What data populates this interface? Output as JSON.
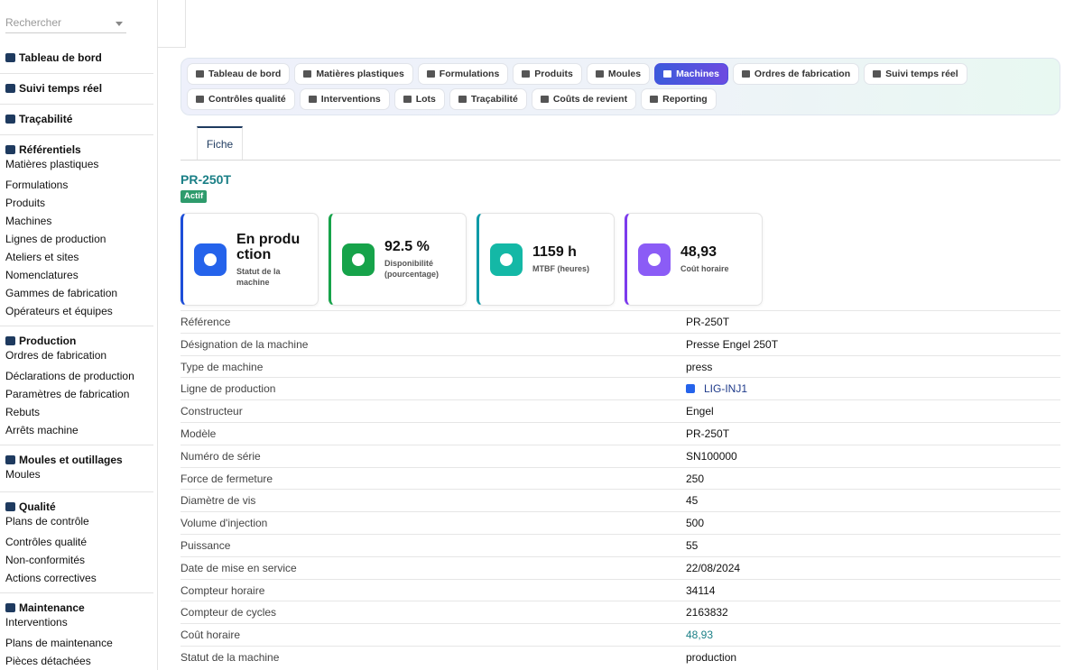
{
  "search": {
    "placeholder": "Rechercher"
  },
  "sidebar": [
    {
      "title": "Tableau de bord",
      "items": []
    },
    {
      "title": "Suivi temps réel",
      "items": []
    },
    {
      "title": "Traçabilité",
      "items": []
    },
    {
      "title": "Référentiels",
      "items": [
        "Matières plastiques",
        "Formulations",
        "Produits",
        "Machines",
        "Lignes de production",
        "Ateliers et sites",
        "Nomenclatures",
        "Gammes de fabrication",
        "Opérateurs et équipes"
      ]
    },
    {
      "title": "Production",
      "items": [
        "Ordres de fabrication",
        "Déclarations de production",
        "Paramètres de fabrication",
        "Rebuts",
        "Arrêts machine"
      ]
    },
    {
      "title": "Moules et outillages",
      "items": [
        "Moules"
      ]
    },
    {
      "title": "Qualité",
      "items": [
        "Plans de contrôle",
        "Contrôles qualité",
        "Non-conformités",
        "Actions correctives"
      ]
    },
    {
      "title": "Maintenance",
      "items": [
        "Interventions",
        "Plans de maintenance",
        "Pièces détachées"
      ]
    }
  ],
  "tabs": [
    {
      "label": "Tableau de bord"
    },
    {
      "label": "Matières plastiques"
    },
    {
      "label": "Formulations"
    },
    {
      "label": "Produits"
    },
    {
      "label": "Moules"
    },
    {
      "label": "Machines",
      "active": true
    },
    {
      "label": "Ordres de fabrication"
    },
    {
      "label": "Suivi temps réel"
    },
    {
      "label": "Contrôles qualité"
    },
    {
      "label": "Interventions"
    },
    {
      "label": "Lots"
    },
    {
      "label": "Traçabilité"
    },
    {
      "label": "Coûts de revient"
    },
    {
      "label": "Reporting"
    }
  ],
  "subtab": "Fiche",
  "header": {
    "title": "PR-250T",
    "badge": "Actif"
  },
  "cards": [
    {
      "value": "En production",
      "label": "Statut de la machine",
      "color": "#1d4ed8",
      "icon_bg": "#2563eb"
    },
    {
      "value": "92.5 %",
      "label": "Disponibilité (pourcentage)",
      "color": "#16a34a",
      "icon_bg": "#16a34a"
    },
    {
      "value": "1159 h",
      "label": "MTBF (heures)",
      "color": "#0e9aa7",
      "icon_bg": "#14b8a6"
    },
    {
      "value": "48,93",
      "label": "Coût horaire",
      "color": "#7c3aed",
      "icon_bg": "#8b5cf6"
    }
  ],
  "table": {
    "rows": [
      {
        "label": "Référence",
        "value": "PR-250T"
      },
      {
        "label": "Désignation de la machine",
        "value": "Presse Engel 250T"
      },
      {
        "label": "Type de machine",
        "value": "press"
      },
      {
        "label": "Ligne de production",
        "value": "LIG-INJ1",
        "style": "link"
      },
      {
        "label": "Constructeur",
        "value": "Engel"
      },
      {
        "label": "Modèle",
        "value": "PR-250T"
      },
      {
        "label": "Numéro de série",
        "value": "SN100000"
      },
      {
        "label": "Force de fermeture",
        "value": "250"
      },
      {
        "label": "Diamètre de vis",
        "value": "45"
      },
      {
        "label": "Volume d'injection",
        "value": "500"
      },
      {
        "label": "Puissance",
        "value": "55"
      },
      {
        "label": "Date de mise en service",
        "value": "22/08/2024"
      },
      {
        "label": "Compteur horaire",
        "value": "34114"
      },
      {
        "label": "Compteur de cycles",
        "value": "2163832"
      },
      {
        "label": "Coût horaire",
        "value": "48,93",
        "style": "accent"
      },
      {
        "label": "Statut de la machine",
        "value": "production"
      }
    ]
  }
}
